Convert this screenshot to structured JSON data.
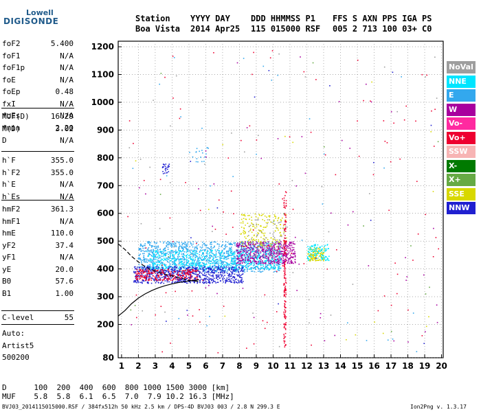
{
  "logo": {
    "line1": "Lowell",
    "line2": "DIGISONDE"
  },
  "header": {
    "labels": [
      "Station",
      "YYYY DAY",
      "DDD HHMMSS P1",
      "FFS S AXN PPS IGA PS"
    ],
    "values": [
      "Boa Vista",
      "2014 Apr25",
      "115 015000 RSF",
      "005 2 713 100 03+ C0"
    ]
  },
  "params": {
    "group1": [
      {
        "name": "foF2",
        "value": "5.400"
      },
      {
        "name": "foF1",
        "value": "N/A"
      },
      {
        "name": "foF1p",
        "value": "N/A"
      },
      {
        "name": "foE",
        "value": "N/A"
      },
      {
        "name": "foEp",
        "value": "0.48"
      },
      {
        "name": "fxI",
        "value": "N/A"
      },
      {
        "name": "foEs",
        "value": "N/A"
      },
      {
        "name": "fmin",
        "value": "2.20"
      }
    ],
    "group2": [
      {
        "name": "MUF(D)",
        "value": "16.29"
      },
      {
        "name": "M(D)",
        "value": "3.02"
      },
      {
        "name": "D",
        "value": "N/A"
      }
    ],
    "group3": [
      {
        "name": "h`F",
        "value": "355.0"
      },
      {
        "name": "h`F2",
        "value": "355.0"
      },
      {
        "name": "h`E",
        "value": "N/A"
      },
      {
        "name": "h`Es",
        "value": "N/A"
      }
    ],
    "group4": [
      {
        "name": "hmF2",
        "value": "361.3"
      },
      {
        "name": "hmF1",
        "value": "N/A"
      },
      {
        "name": "hmE",
        "value": "110.0"
      },
      {
        "name": "yF2",
        "value": "37.4"
      },
      {
        "name": "yF1",
        "value": "N/A"
      },
      {
        "name": "yE",
        "value": "20.0"
      },
      {
        "name": "B0",
        "value": "57.6"
      },
      {
        "name": "B1",
        "value": "1.00"
      }
    ],
    "group5": [
      {
        "name": "C-level",
        "value": "55"
      }
    ]
  },
  "auto": {
    "line1": "Auto:",
    "line2": "Artist5",
    "line3": "500200"
  },
  "legend": [
    {
      "label": "NoVal",
      "color": "#9e9e9e"
    },
    {
      "label": "NNE",
      "color": "#00e5ff"
    },
    {
      "label": "E",
      "color": "#33a8ee"
    },
    {
      "label": "W",
      "color": "#a8009e"
    },
    {
      "label": "Vo-",
      "color": "#ff2aa0"
    },
    {
      "label": "Vo+",
      "color": "#ee0030"
    },
    {
      "label": "SSW",
      "color": "#f7b4b4"
    },
    {
      "label": "X-",
      "color": "#007a00"
    },
    {
      "label": "X+",
      "color": "#66aa44"
    },
    {
      "label": "SSE",
      "color": "#d8d800"
    },
    {
      "label": "NNW",
      "color": "#2020d0"
    }
  ],
  "muf_table": {
    "d_line": "D      100  200  400  600  800 1000 1500 3000 [km]",
    "muf_line": "MUF    5.8  5.8  6.1  6.5  7.0  7.9 10.2 16.3 [MHz]"
  },
  "footer": {
    "left": "BVJ03_2014115015000.RSF / 384fx512h 50 kHz 2.5 km / DPS-4D BVJ03 003 / 2.8 N 299.3 E",
    "right": "Ion2Png v. 1.3.17"
  },
  "chart_data": {
    "type": "scatter",
    "x_ticks": [
      1,
      2,
      3,
      4,
      5,
      6,
      7,
      8,
      9,
      10,
      11,
      12,
      13,
      14,
      15,
      16,
      17,
      18,
      19,
      20
    ],
    "y_ticks": [
      80,
      200,
      300,
      400,
      500,
      600,
      700,
      800,
      900,
      1000,
      1100,
      1200
    ],
    "xlim": [
      0.8,
      20.1
    ],
    "ylim": [
      80,
      1220
    ],
    "grid": true,
    "traces": [
      {
        "name": "virtual height",
        "points": [
          [
            0.8,
            490
          ],
          [
            1.2,
            470
          ],
          [
            1.6,
            445
          ],
          [
            2.0,
            425
          ],
          [
            2.4,
            408
          ],
          [
            2.8,
            396
          ],
          [
            3.2,
            388
          ],
          [
            3.6,
            380
          ],
          [
            4.0,
            375
          ],
          [
            4.4,
            368
          ],
          [
            4.8,
            362
          ],
          [
            5.2,
            357
          ],
          [
            5.6,
            355
          ]
        ]
      },
      {
        "name": "true height",
        "points": [
          [
            0.8,
            230
          ],
          [
            1.2,
            250
          ],
          [
            1.6,
            275
          ],
          [
            2.0,
            295
          ],
          [
            2.4,
            310
          ],
          [
            2.8,
            322
          ],
          [
            3.2,
            332
          ],
          [
            3.6,
            340
          ],
          [
            4.0,
            346
          ],
          [
            4.4,
            351
          ],
          [
            4.8,
            355
          ],
          [
            5.2,
            358
          ],
          [
            5.6,
            361
          ]
        ]
      }
    ],
    "clusters": [
      {
        "color": "#33a8ee",
        "x": [
          2.0,
          10.4
        ],
        "y": [
          390,
          500
        ],
        "n": 1400
      },
      {
        "color": "#00e5ff",
        "x": [
          2.5,
          10.5
        ],
        "y": [
          400,
          470
        ],
        "n": 500
      },
      {
        "color": "#2020d0",
        "x": [
          1.7,
          8.2
        ],
        "y": [
          350,
          410
        ],
        "n": 700
      },
      {
        "color": "#a8009e",
        "x": [
          7.8,
          11.3
        ],
        "y": [
          420,
          500
        ],
        "n": 500
      },
      {
        "color": "#ee0030",
        "x": [
          1.8,
          5.5
        ],
        "y": [
          360,
          400
        ],
        "n": 250
      },
      {
        "color": "#d8d800",
        "x": [
          8.0,
          10.8
        ],
        "y": [
          480,
          600
        ],
        "n": 180
      },
      {
        "color": "#d8d800",
        "x": [
          12.0,
          13.0
        ],
        "y": [
          430,
          480
        ],
        "n": 120
      },
      {
        "color": "#00e5ff",
        "x": [
          12.0,
          13.3
        ],
        "y": [
          430,
          490
        ],
        "n": 100
      },
      {
        "color": "#9e9e9e",
        "x": [
          8.5,
          10.8
        ],
        "y": [
          440,
          580
        ],
        "n": 80
      },
      {
        "color": "#ee0030",
        "x": [
          10.6,
          10.75
        ],
        "y": [
          120,
          680
        ],
        "n": 160
      },
      {
        "color": "#2020d0",
        "x": [
          3.4,
          3.8
        ],
        "y": [
          740,
          780
        ],
        "n": 25
      },
      {
        "color": "#33a8ee",
        "x": [
          5.0,
          6.2
        ],
        "y": [
          780,
          840
        ],
        "n": 20
      }
    ],
    "noise": [
      {
        "color": "#ee0030",
        "n": 110
      },
      {
        "color": "#a8009e",
        "n": 50
      },
      {
        "color": "#9e9e9e",
        "n": 40
      },
      {
        "color": "#33a8ee",
        "n": 30
      },
      {
        "color": "#d8d800",
        "n": 15
      },
      {
        "color": "#66aa44",
        "n": 15
      },
      {
        "color": "#2020d0",
        "n": 15
      }
    ]
  }
}
